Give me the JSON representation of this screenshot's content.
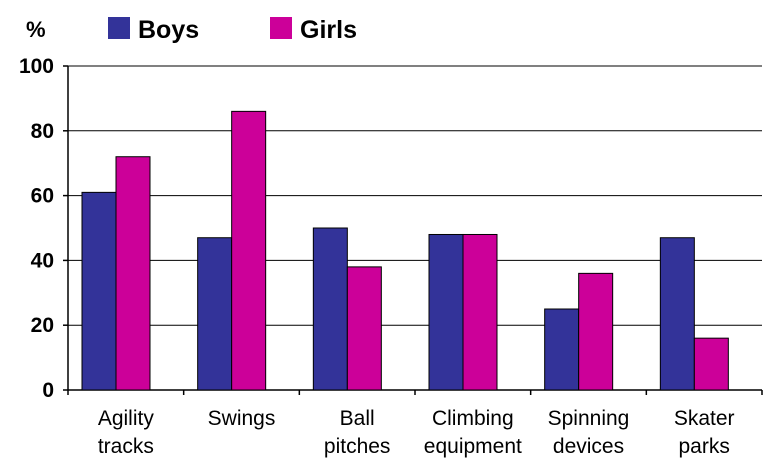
{
  "chart_data": {
    "type": "bar",
    "ylabel": "%",
    "categories": [
      [
        "Agility",
        "tracks"
      ],
      [
        "Swings",
        ""
      ],
      [
        "Ball",
        "pitches"
      ],
      [
        "Climbing",
        "equipment"
      ],
      [
        "Spinning",
        "devices"
      ],
      [
        "Skater",
        "parks"
      ]
    ],
    "series": [
      {
        "name": "Boys",
        "color": "#333399",
        "values": [
          61,
          47,
          50,
          48,
          25,
          47
        ]
      },
      {
        "name": "Girls",
        "color": "#cc0099",
        "values": [
          72,
          86,
          38,
          48,
          36,
          16
        ]
      }
    ],
    "ylim": [
      0,
      100
    ],
    "yticks": [
      0,
      20,
      40,
      60,
      80,
      100
    ],
    "grid": true,
    "legend": "top-left"
  }
}
